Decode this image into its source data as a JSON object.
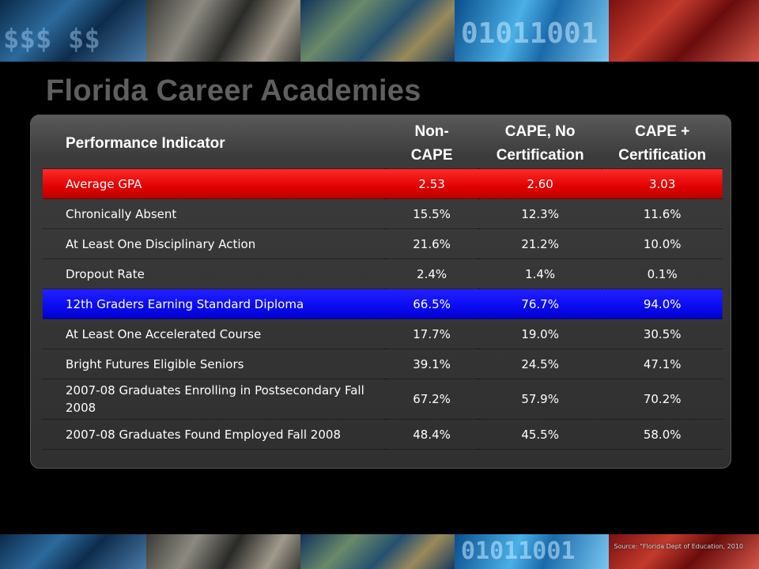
{
  "title": "Florida Career Academies",
  "table": {
    "headers": [
      "Performance Indicator",
      "Non-CAPE",
      "CAPE, No Certification",
      "CAPE + Certification"
    ],
    "rows": [
      {
        "indicator": "Average GPA",
        "non_cape": "2.53",
        "cape_no_cert": "2.60",
        "cape_cert": "3.03",
        "highlight": "red"
      },
      {
        "indicator": "Chronically Absent",
        "non_cape": "15.5%",
        "cape_no_cert": "12.3%",
        "cape_cert": "11.6%",
        "highlight": "none"
      },
      {
        "indicator": "At Least One Disciplinary Action",
        "non_cape": "21.6%",
        "cape_no_cert": "21.2%",
        "cape_cert": "10.0%",
        "highlight": "none"
      },
      {
        "indicator": "Dropout Rate",
        "non_cape": "2.4%",
        "cape_no_cert": "1.4%",
        "cape_cert": "0.1%",
        "highlight": "none"
      },
      {
        "indicator": "12th Graders Earning Standard Diploma",
        "non_cape": "66.5%",
        "cape_no_cert": "76.7%",
        "cape_cert": "94.0%",
        "highlight": "blue"
      },
      {
        "indicator": "At Least One Accelerated Course",
        "non_cape": "17.7%",
        "cape_no_cert": "19.0%",
        "cape_cert": "30.5%",
        "highlight": "none"
      },
      {
        "indicator": "Bright Futures Eligible Seniors",
        "non_cape": "39.1%",
        "cape_no_cert": "24.5%",
        "cape_cert": "47.1%",
        "highlight": "none"
      },
      {
        "indicator": "2007-08 Graduates Enrolling in Postsecondary Fall 2008",
        "non_cape": "67.2%",
        "cape_no_cert": "57.9%",
        "cape_cert": "70.2%",
        "highlight": "none"
      },
      {
        "indicator": "2007-08 Graduates Found Employed Fall 2008",
        "non_cape": "48.4%",
        "cape_no_cert": "45.5%",
        "cape_cert": "58.0%",
        "highlight": "none"
      }
    ]
  },
  "source": "Source: \"Florida Dept of Education, 2010",
  "colors": {
    "title": "#5f5f5f",
    "highlight_red": "#e00000",
    "highlight_blue": "#0a0af0",
    "panel": "#3b3b3b"
  }
}
